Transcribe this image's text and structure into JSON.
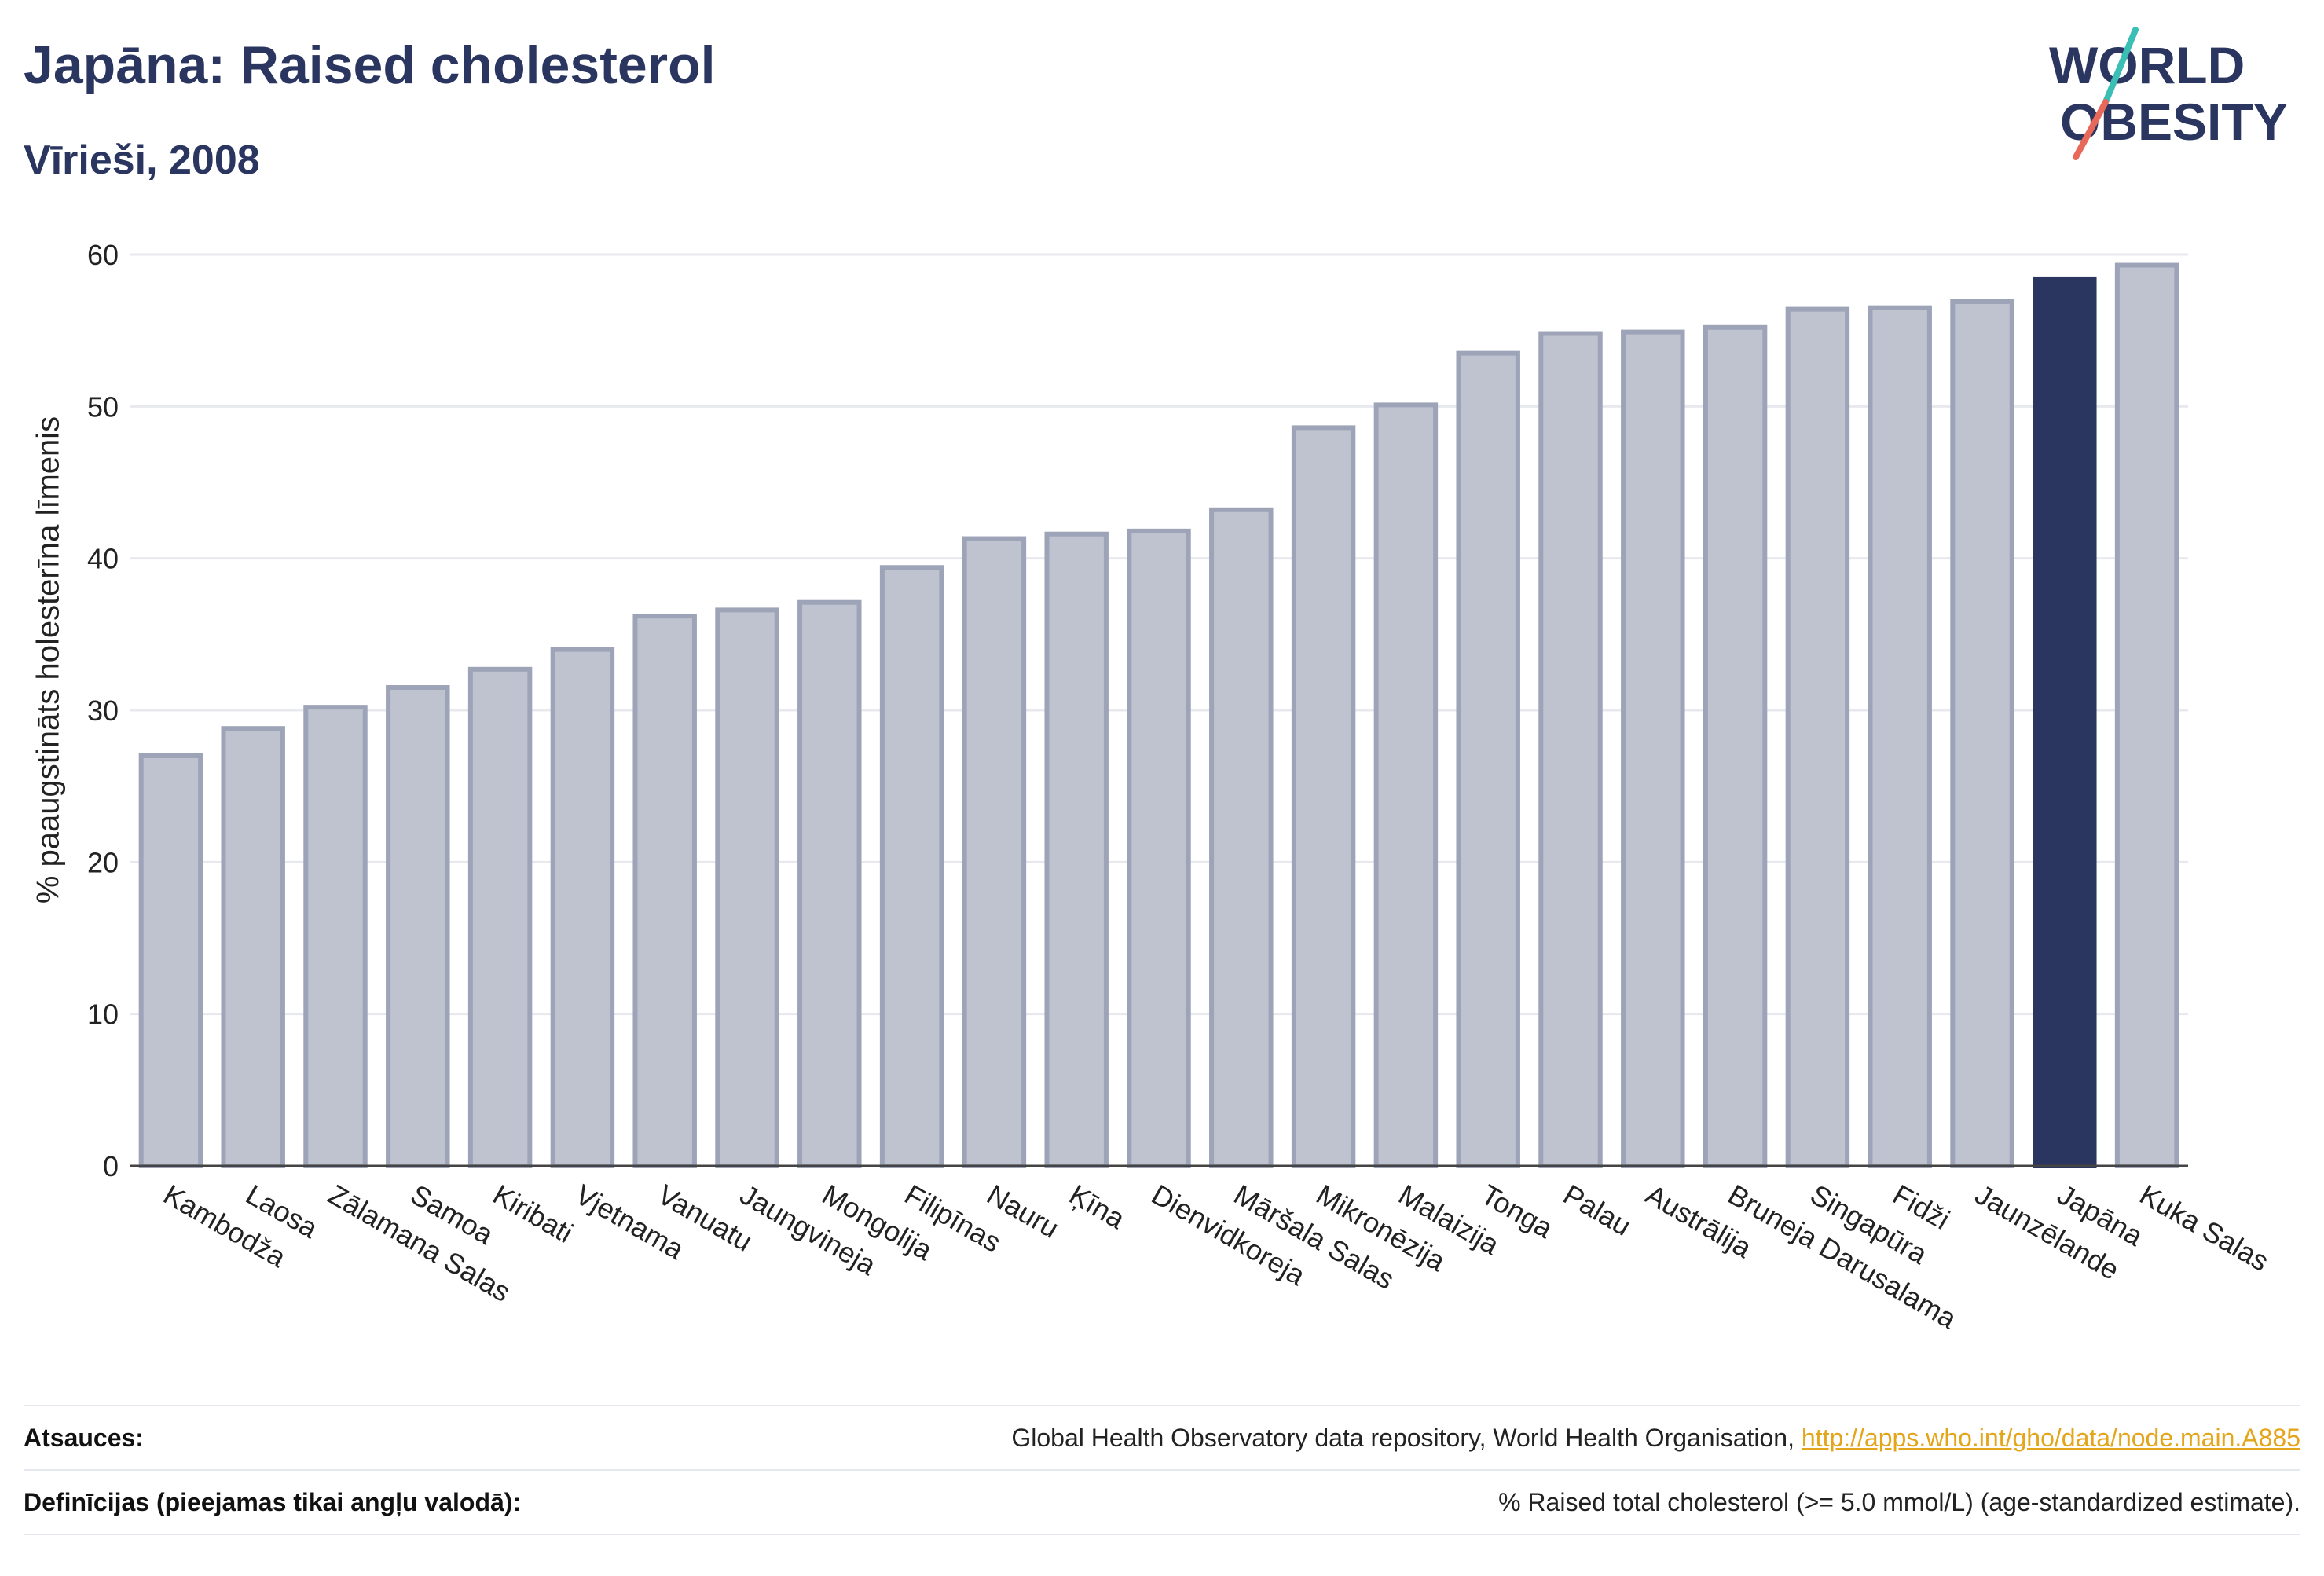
{
  "header": {
    "title": "Japāna: Raised cholesterol",
    "subtitle": "Vīrieši, 2008"
  },
  "logo": {
    "line1": "WORLD",
    "line2": "OBESITY",
    "colors": {
      "text": "#2a3560",
      "slash_top": "#3bbfb5",
      "slash_bottom": "#e8685a"
    }
  },
  "colors": {
    "bar_fill": "#bfc3cf",
    "bar_stroke": "#9ea4b8",
    "highlight": "#2a3560",
    "grid": "#e8e9ee",
    "axis": "#444444"
  },
  "chart_data": {
    "type": "bar",
    "ylabel": "% paaugstināts holesterīna līmenis",
    "xlabel": "",
    "ylim": [
      0,
      60
    ],
    "yticks": [
      0,
      10,
      20,
      30,
      40,
      50,
      60
    ],
    "grid": true,
    "highlight": "Japāna",
    "categories": [
      "Kambodža",
      "Laosa",
      "Zālamana Salas",
      "Samoa",
      "Kiribati",
      "Vjetnama",
      "Vanuatu",
      "Jaungvineja",
      "Mongolija",
      "Filipīnas",
      "Nauru",
      "Ķīna",
      "Dienvidkoreja",
      "Māršala Salas",
      "Mikronēzija",
      "Malaizija",
      "Tonga",
      "Palau",
      "Austrālija",
      "Bruneja Darusalama",
      "Singapūra",
      "Fidži",
      "Jaunzēlande",
      "Japāna",
      "Kuka Salas"
    ],
    "values": [
      27.0,
      28.8,
      30.2,
      31.5,
      32.7,
      34.0,
      36.2,
      36.6,
      37.1,
      39.4,
      41.3,
      41.6,
      41.8,
      43.2,
      48.6,
      50.1,
      53.5,
      54.8,
      54.9,
      55.2,
      56.4,
      56.5,
      56.9,
      58.4,
      59.3
    ]
  },
  "footer": {
    "sources_label": "Atsauces:",
    "sources_text": "Global Health Observatory data repository, World Health Organisation, ",
    "sources_link": "http://apps.who.int/gho/data/node.main.A885",
    "definitions_label": "Definīcijas (pieejamas tikai angļu valodā):",
    "definitions_text": "% Raised total cholesterol (>= 5.0 mmol/L) (age-standardized estimate)."
  }
}
